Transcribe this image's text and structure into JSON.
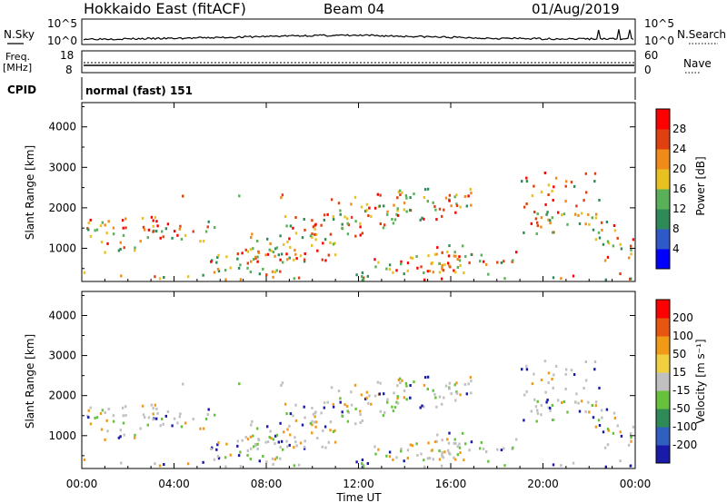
{
  "header": {
    "station": "Hokkaido East (fitACF)",
    "beam": "Beam 04",
    "date": "01/Aug/2019"
  },
  "nsky_panel": {
    "left_label": "N.Sky",
    "right_label": "N.Search",
    "left_ticks": [
      "10^5",
      "10^0"
    ],
    "right_ticks": [
      "10^5",
      "10^0"
    ]
  },
  "freq_panel": {
    "left_label_1": "Freq.",
    "left_label_2": "[MHz]",
    "right_label": "Nave",
    "left_ticks": [
      "18",
      "8"
    ],
    "right_ticks": [
      "60",
      "0"
    ]
  },
  "cpid_panel": {
    "left_label": "CPID",
    "program": "normal (fast) 151"
  },
  "chart_data": [
    {
      "type": "heatmap",
      "title": "Power",
      "ylabel": "Slant Range [km]",
      "xlabel": "Time UT",
      "x_ticks": [
        "00:00",
        "04:00",
        "08:00",
        "12:00",
        "16:00",
        "20:00",
        "00:00"
      ],
      "x_range_hours": [
        0,
        24
      ],
      "y_ticks": [
        1000,
        2000,
        3000,
        4000
      ],
      "ylim": [
        180,
        4600
      ],
      "colorbar": {
        "label": "Power [dB]",
        "ticks": [
          4,
          8,
          12,
          16,
          20,
          24,
          28
        ],
        "colors": [
          "#0000ff",
          "#2e59c8",
          "#2e8b57",
          "#58b058",
          "#e8c020",
          "#f08a18",
          "#e04010",
          "#ff0000"
        ]
      }
    },
    {
      "type": "heatmap",
      "title": "Velocity",
      "ylabel": "Slant Range [km]",
      "xlabel": "Time UT",
      "x_ticks": [
        "00:00",
        "04:00",
        "08:00",
        "12:00",
        "16:00",
        "20:00",
        "00:00"
      ],
      "x_range_hours": [
        0,
        24
      ],
      "y_ticks": [
        1000,
        2000,
        3000,
        4000
      ],
      "ylim": [
        180,
        4600
      ],
      "colorbar": {
        "label": "Velocity [m s⁻¹]",
        "ticks": [
          200,
          100,
          50,
          15,
          -15,
          -50,
          -100,
          -200
        ],
        "colors": [
          "#1a1aa8",
          "#2f5fbf",
          "#2e8b57",
          "#66c23a",
          "#c0c0c0",
          "#f0d040",
          "#f09a18",
          "#e85510",
          "#ff0000"
        ]
      }
    }
  ],
  "x_axis_title": "Time UT"
}
